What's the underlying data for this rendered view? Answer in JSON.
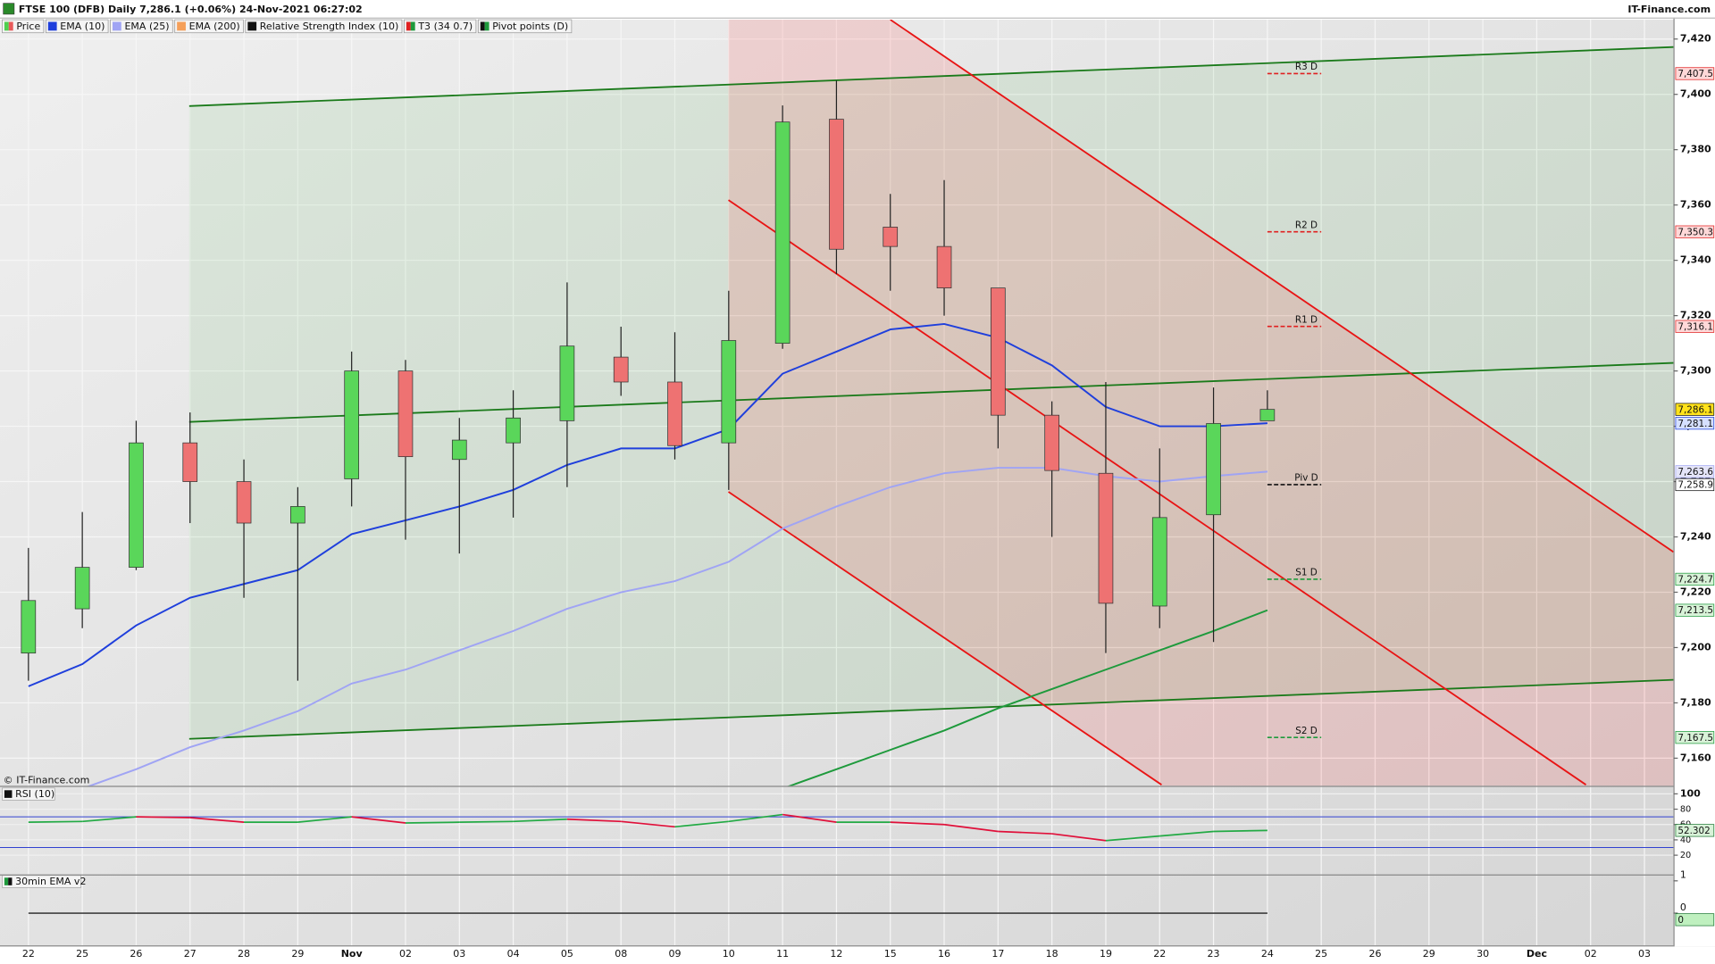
{
  "header": {
    "title": "FTSE 100 (DFB) Daily 7,286.1 (+0.06%) 24-Nov-2021 06:27:02",
    "brand": "IT-Finance.com",
    "watermark": "© IT-Finance.com"
  },
  "legend": [
    {
      "name": "Price",
      "colors": [
        "#4fd04f",
        "#e85a5a"
      ]
    },
    {
      "name": "EMA (10)",
      "colors": [
        "#1f3fdc"
      ]
    },
    {
      "name": "EMA (25)",
      "colors": [
        "#a0a4f4"
      ]
    },
    {
      "name": "EMA (200)",
      "colors": [
        "#f5a05a"
      ]
    },
    {
      "name": "Relative Strength Index (10)",
      "colors": [
        "#111111"
      ]
    },
    {
      "name": "T3 (34 0.7)",
      "colors": [
        "#e02020",
        "#1e9a3c"
      ]
    },
    {
      "name": "Pivot points (D)",
      "colors": [
        "#111111",
        "#1e9a3c"
      ]
    }
  ],
  "chart_data": [
    {
      "type": "candlestick",
      "categories": [
        "22",
        "25",
        "26",
        "27",
        "28",
        "29",
        "Nov",
        "02",
        "03",
        "04",
        "05",
        "08",
        "09",
        "10",
        "11",
        "12",
        "15",
        "16",
        "17",
        "18",
        "19",
        "22",
        "23",
        "24",
        "25",
        "26",
        "29",
        "30",
        "Dec",
        "02",
        "03"
      ],
      "open": [
        7198,
        7214,
        7229,
        7274,
        7260,
        7245,
        7261,
        7300,
        7268,
        7274,
        7282,
        7305,
        7296,
        7274,
        7310,
        7391,
        7352,
        7345,
        7330,
        7284,
        7263,
        7215,
        7248,
        7282,
        null,
        null,
        null,
        null,
        null,
        null,
        null
      ],
      "high": [
        7236,
        7249,
        7282,
        7285,
        7268,
        7258,
        7307,
        7304,
        7283,
        7293,
        7332,
        7316,
        7314,
        7329,
        7396,
        7405,
        7364,
        7369,
        7330,
        7289,
        7296,
        7272,
        7294,
        7293,
        null,
        null,
        null,
        null,
        null,
        null,
        null
      ],
      "low": [
        7188,
        7207,
        7228,
        7245,
        7218,
        7188,
        7251,
        7239,
        7234,
        7247,
        7258,
        7291,
        7268,
        7257,
        7308,
        7335,
        7329,
        7320,
        7272,
        7240,
        7198,
        7207,
        7202,
        7282,
        null,
        null,
        null,
        null,
        null,
        null,
        null
      ],
      "close": [
        7217,
        7229,
        7274,
        7260,
        7245,
        7251,
        7300,
        7269,
        7275,
        7283,
        7309,
        7296,
        7273,
        7311,
        7390,
        7344,
        7345,
        7330,
        7284,
        7264,
        7216,
        7247,
        7281,
        7286.1,
        null,
        null,
        null,
        null,
        null,
        null,
        null
      ],
      "up_color": "#5ad65a",
      "down_color": "#ee7272",
      "last_label": "7,286.1",
      "last_color": "#ffe21a",
      "ylim": [
        7150,
        7427
      ],
      "yticks": [
        {
          "value": 7160,
          "label": "7,160"
        },
        {
          "value": 7180,
          "label": "7,180"
        },
        {
          "value": 7200,
          "label": "7,200"
        },
        {
          "value": 7220,
          "label": "7,220"
        },
        {
          "value": 7240,
          "label": "7,240"
        },
        {
          "value": 7260,
          "label": "7,260"
        },
        {
          "value": 7280,
          "label": "7,280"
        },
        {
          "value": 7300,
          "label": "7,300"
        },
        {
          "value": 7320,
          "label": "7,320"
        },
        {
          "value": 7340,
          "label": "7,340"
        },
        {
          "value": 7360,
          "label": "7,360"
        },
        {
          "value": 7380,
          "label": "7,380"
        },
        {
          "value": 7400,
          "label": "7,400"
        },
        {
          "value": 7420,
          "label": "7,420"
        }
      ],
      "grid": true,
      "series": [
        {
          "color": "#1f3fdc",
          "badge": "#d6e0ff",
          "last_label": "7,281.1",
          "values": [
            7186,
            7194,
            7208,
            7218,
            7223,
            7228,
            7241,
            7246,
            7251,
            7257,
            7266,
            7272,
            7272,
            7279,
            7299,
            7307,
            7315,
            7317,
            7312,
            7302,
            7287,
            7280,
            7280,
            7281.1,
            null,
            null,
            null,
            null,
            null,
            null,
            null
          ]
        },
        {
          "color": "#a0a4f4",
          "badge": "#e4e4f8",
          "last_label": "7,263.6",
          "values": [
            null,
            7149,
            7156,
            7164,
            7170,
            7177,
            7187,
            7192,
            7199,
            7206,
            7214,
            7220,
            7224,
            7231,
            7243,
            7251,
            7258,
            7263,
            7265,
            7265,
            7262,
            7260,
            7262,
            7263.6,
            null,
            null,
            null,
            null,
            null,
            null,
            null
          ]
        },
        {
          "color": "#1e9a3c",
          "badge": "#d8f2d8",
          "last_label": "7,213.5",
          "values": [
            null,
            null,
            null,
            null,
            null,
            null,
            null,
            null,
            null,
            null,
            null,
            null,
            null,
            null,
            7149,
            7156,
            7163,
            7170,
            7178,
            7185,
            7192,
            7199,
            7206,
            7213.5,
            null,
            null,
            null,
            null,
            null,
            null,
            null
          ]
        }
      ],
      "pivots": [
        {
          "name": "R3 D",
          "value": 7407.5,
          "value_label": "7,407.5",
          "color": "#e02020",
          "badge": "#ffd8d8"
        },
        {
          "name": "R2 D",
          "value": 7350.3,
          "value_label": "7,350.3",
          "color": "#e02020",
          "badge": "#ffd8d8"
        },
        {
          "name": "R1 D",
          "value": 7316.1,
          "value_label": "7,316.1",
          "color": "#e02020",
          "badge": "#ffd8d8"
        },
        {
          "name": "Piv D",
          "value": 7258.9,
          "value_label": "7,258.9",
          "color": "#111111",
          "badge": "#ffffff"
        },
        {
          "name": "S1 D",
          "value": 7224.7,
          "value_label": "7,224.7",
          "color": "#1e9a3c",
          "badge": "#d8f2d8"
        },
        {
          "name": "S2 D",
          "value": 7167.5,
          "value_label": "7,167.5",
          "color": "#1e9a3c",
          "badge": "#d8f2d8"
        }
      ]
    },
    {
      "type": "line",
      "title": "RSI (10)",
      "values": [
        63,
        64,
        70,
        69,
        63,
        63,
        70,
        62,
        63,
        64,
        67,
        64,
        57,
        64,
        73,
        63,
        63,
        60,
        51,
        48,
        39,
        45,
        51,
        52.302,
        null,
        null,
        null,
        null,
        null,
        null,
        null
      ],
      "up_color": "#22aa44",
      "down_color": "#e0103a",
      "badge": "#d8f2d8",
      "ylim": [
        -5,
        109
      ],
      "yticks": [
        100,
        80,
        60,
        40,
        20
      ],
      "bands": [
        70,
        30
      ],
      "band_color": "#3040d0"
    },
    {
      "type": "line",
      "title": "30min EMA v2",
      "values": [
        0,
        0,
        0,
        0,
        0,
        0,
        0,
        0,
        0,
        0,
        0,
        0,
        0,
        0,
        0,
        0,
        0,
        0,
        0,
        0,
        0,
        0,
        0,
        0,
        null,
        null,
        null,
        null,
        null,
        null,
        null
      ],
      "color": "#222222",
      "badge": "#bff0bf",
      "ylim": [
        -1,
        1.2
      ],
      "yticks": [
        1,
        0
      ]
    }
  ]
}
